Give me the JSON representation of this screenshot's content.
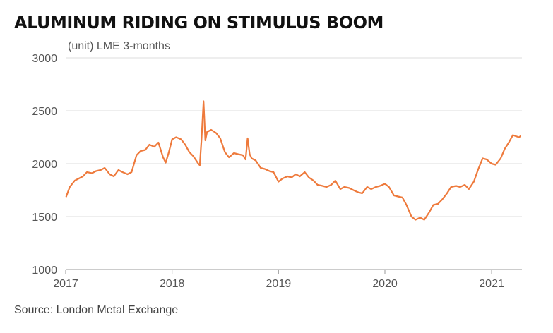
{
  "title": "ALUMINUM RIDING ON STIMULUS BOOM",
  "subtitle": "(unit) LME 3-months",
  "source": "Source: London Metal Exchange",
  "colors": {
    "line": "#ee7a3c",
    "grid": "#dddddd",
    "axis": "#999999"
  },
  "chart_data": {
    "type": "line",
    "title": "ALUMINUM RIDING ON STIMULUS BOOM",
    "ylabel": "(unit) LME 3-months",
    "ylim": [
      1000,
      3000
    ],
    "xlim": [
      "2017-01-01",
      "2021-04-15"
    ],
    "y_ticks": [
      "1000",
      "1500",
      "2000",
      "2500",
      "3000"
    ],
    "x_ticks": [
      "2017",
      "2018",
      "2019",
      "2020",
      "2021"
    ],
    "grid": true,
    "series": [
      {
        "name": "",
        "points": [
          [
            "2017-01-03",
            1690
          ],
          [
            "2017-01-15",
            1780
          ],
          [
            "2017-02-01",
            1840
          ],
          [
            "2017-02-15",
            1860
          ],
          [
            "2017-03-01",
            1880
          ],
          [
            "2017-03-15",
            1920
          ],
          [
            "2017-04-01",
            1910
          ],
          [
            "2017-04-15",
            1930
          ],
          [
            "2017-05-01",
            1940
          ],
          [
            "2017-05-15",
            1960
          ],
          [
            "2017-06-01",
            1900
          ],
          [
            "2017-06-15",
            1880
          ],
          [
            "2017-07-01",
            1940
          ],
          [
            "2017-07-15",
            1920
          ],
          [
            "2017-08-01",
            1900
          ],
          [
            "2017-08-15",
            1920
          ],
          [
            "2017-09-01",
            2080
          ],
          [
            "2017-09-15",
            2120
          ],
          [
            "2017-10-01",
            2130
          ],
          [
            "2017-10-15",
            2180
          ],
          [
            "2017-11-01",
            2160
          ],
          [
            "2017-11-15",
            2200
          ],
          [
            "2017-12-01",
            2060
          ],
          [
            "2017-12-10",
            2010
          ],
          [
            "2017-12-20",
            2100
          ],
          [
            "2018-01-01",
            2230
          ],
          [
            "2018-01-15",
            2250
          ],
          [
            "2018-02-01",
            2230
          ],
          [
            "2018-02-15",
            2180
          ],
          [
            "2018-03-01",
            2110
          ],
          [
            "2018-03-15",
            2070
          ],
          [
            "2018-04-01",
            2000
          ],
          [
            "2018-04-06",
            1985
          ],
          [
            "2018-04-12",
            2240
          ],
          [
            "2018-04-19",
            2590
          ],
          [
            "2018-04-25",
            2220
          ],
          [
            "2018-05-01",
            2300
          ],
          [
            "2018-05-15",
            2320
          ],
          [
            "2018-06-01",
            2290
          ],
          [
            "2018-06-15",
            2240
          ],
          [
            "2018-07-01",
            2110
          ],
          [
            "2018-07-15",
            2060
          ],
          [
            "2018-08-01",
            2100
          ],
          [
            "2018-08-15",
            2090
          ],
          [
            "2018-09-01",
            2080
          ],
          [
            "2018-09-10",
            2040
          ],
          [
            "2018-09-17",
            2240
          ],
          [
            "2018-09-24",
            2090
          ],
          [
            "2018-10-01",
            2050
          ],
          [
            "2018-10-15",
            2030
          ],
          [
            "2018-11-01",
            1960
          ],
          [
            "2018-11-15",
            1950
          ],
          [
            "2018-12-01",
            1930
          ],
          [
            "2018-12-15",
            1920
          ],
          [
            "2019-01-01",
            1830
          ],
          [
            "2019-01-15",
            1860
          ],
          [
            "2019-02-01",
            1880
          ],
          [
            "2019-02-15",
            1870
          ],
          [
            "2019-03-01",
            1900
          ],
          [
            "2019-03-15",
            1880
          ],
          [
            "2019-04-01",
            1920
          ],
          [
            "2019-04-15",
            1870
          ],
          [
            "2019-05-01",
            1840
          ],
          [
            "2019-05-15",
            1800
          ],
          [
            "2019-06-01",
            1790
          ],
          [
            "2019-06-15",
            1780
          ],
          [
            "2019-07-01",
            1800
          ],
          [
            "2019-07-15",
            1840
          ],
          [
            "2019-08-01",
            1760
          ],
          [
            "2019-08-15",
            1780
          ],
          [
            "2019-09-01",
            1770
          ],
          [
            "2019-09-15",
            1750
          ],
          [
            "2019-10-01",
            1730
          ],
          [
            "2019-10-15",
            1720
          ],
          [
            "2019-11-01",
            1780
          ],
          [
            "2019-11-15",
            1760
          ],
          [
            "2019-12-01",
            1780
          ],
          [
            "2019-12-15",
            1790
          ],
          [
            "2020-01-01",
            1810
          ],
          [
            "2020-01-15",
            1780
          ],
          [
            "2020-02-01",
            1700
          ],
          [
            "2020-02-15",
            1690
          ],
          [
            "2020-03-01",
            1680
          ],
          [
            "2020-03-15",
            1610
          ],
          [
            "2020-04-01",
            1500
          ],
          [
            "2020-04-15",
            1470
          ],
          [
            "2020-05-01",
            1490
          ],
          [
            "2020-05-15",
            1470
          ],
          [
            "2020-06-01",
            1540
          ],
          [
            "2020-06-15",
            1610
          ],
          [
            "2020-07-01",
            1620
          ],
          [
            "2020-07-15",
            1660
          ],
          [
            "2020-08-01",
            1720
          ],
          [
            "2020-08-15",
            1780
          ],
          [
            "2020-09-01",
            1790
          ],
          [
            "2020-09-15",
            1780
          ],
          [
            "2020-10-01",
            1800
          ],
          [
            "2020-10-15",
            1760
          ],
          [
            "2020-11-01",
            1830
          ],
          [
            "2020-11-15",
            1940
          ],
          [
            "2020-12-01",
            2050
          ],
          [
            "2020-12-15",
            2040
          ],
          [
            "2021-01-01",
            2000
          ],
          [
            "2021-01-15",
            1990
          ],
          [
            "2021-02-01",
            2050
          ],
          [
            "2021-02-15",
            2140
          ],
          [
            "2021-03-01",
            2200
          ],
          [
            "2021-03-15",
            2270
          ],
          [
            "2021-03-25",
            2260
          ],
          [
            "2021-04-05",
            2250
          ],
          [
            "2021-04-10",
            2260
          ]
        ]
      }
    ]
  }
}
